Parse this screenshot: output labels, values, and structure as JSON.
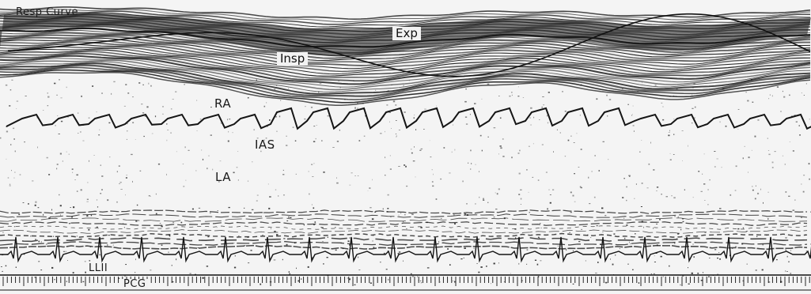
{
  "labels": {
    "resp_curve": "Resp Curve",
    "exp": "Exp",
    "insp": "Insp",
    "ra": "RA",
    "ias": "IAS",
    "la": "LA",
    "lead": "LLII",
    "pcg": "PCG"
  },
  "colors": {
    "background": "#f4f4f4",
    "trace": "#151515",
    "band": "#222222"
  }
}
